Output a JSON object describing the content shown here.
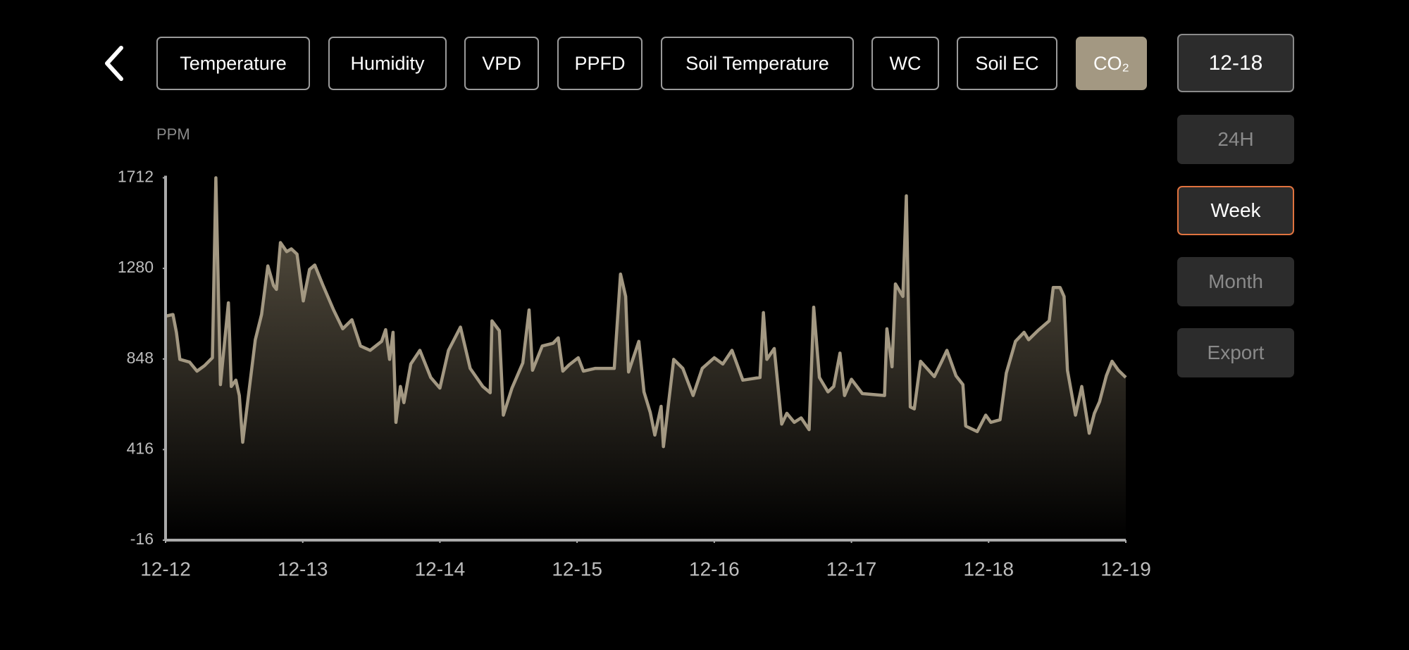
{
  "ui": {
    "tabs": [
      "Temperature",
      "Humidity",
      "VPD",
      "PPFD",
      "Soil Temperature",
      "WC",
      "Soil EC",
      "CO₂"
    ],
    "active_tab": 7,
    "date_button": "12-18",
    "range_buttons": [
      "24H",
      "Week",
      "Month"
    ],
    "active_range": 1,
    "export_button": "Export"
  },
  "chart_data": {
    "type": "area",
    "y_label": "PPM",
    "color": "#a39882",
    "x": [
      0,
      1.3,
      1.9,
      2.5,
      4.2,
      5.5,
      6.8,
      8.2,
      8.8,
      9.6,
      11.0,
      11.5,
      12.3,
      12.9,
      13.5,
      15.7,
      16.8,
      17.9,
      18.9,
      19.4,
      20.1,
      21.2,
      22.0,
      23.0,
      24.1,
      25.2,
      26.1,
      27.5,
      29.4,
      31.0,
      32.6,
      34.1,
      35.8,
      37.8,
      38.5,
      39.2,
      39.8,
      40.3,
      41.1,
      41.7,
      42.9,
      44.5,
      46.4,
      48.0,
      49.5,
      51.6,
      53.3,
      55.5,
      56.8,
      57.1,
      58.4,
      59.1,
      60.6,
      62.5,
      63.6,
      64.2,
      65.9,
      67.8,
      68.7,
      69.5,
      70.6,
      72.2,
      73.1,
      75.2,
      78.5,
      79.6,
      80.5,
      81.0,
      82.8,
      83.7,
      84.8,
      85.6,
      86.7,
      87.1,
      88.9,
      90.5,
      92.3,
      93.9,
      96.0,
      97.5,
      99.1,
      101.0,
      104.0,
      104.6,
      105.2,
      106.5,
      107.8,
      108.7,
      110.0,
      111.2,
      112.6,
      113.4,
      114.4,
      115.9,
      116.9,
      118.0,
      118.8,
      120.0,
      121.9,
      125.8,
      126.2,
      127.1,
      127.7,
      129.0,
      129.6,
      130.3,
      131.0,
      132.1,
      134.5,
      135.8,
      136.7,
      138.3,
      139.5,
      140.0,
      142.0,
      143.5,
      144.4,
      146.0,
      147.1,
      148.7,
      150.2,
      151.0,
      152.6,
      154.6,
      155.3,
      156.5,
      157.2,
      157.8,
      159.2,
      160.3,
      161.6,
      162.5,
      163.4,
      164.6,
      165.6,
      166.7,
      168.0
    ],
    "values": [
      1052,
      1060,
      975,
      846,
      833,
      790,
      816,
      854,
      1712,
      726,
      1116,
      717,
      747,
      674,
      451,
      940,
      1060,
      1292,
      1198,
      1180,
      1403,
      1360,
      1373,
      1348,
      1125,
      1275,
      1296,
      1202,
      1082,
      992,
      1035,
      910,
      889,
      932,
      988,
      846,
      975,
      546,
      717,
      640,
      824,
      889,
      760,
      709,
      889,
      1000,
      803,
      717,
      687,
      1030,
      983,
      580,
      709,
      829,
      1082,
      794,
      910,
      923,
      949,
      790,
      820,
      854,
      790,
      803,
      803,
      1253,
      1146,
      786,
      932,
      691,
      593,
      485,
      622,
      430,
      846,
      803,
      674,
      803,
      854,
      824,
      889,
      747,
      760,
      1069,
      846,
      898,
      537,
      589,
      546,
      567,
      511,
      1095,
      760,
      691,
      717,
      876,
      674,
      751,
      683,
      674,
      992,
      811,
      1206,
      1146,
      1626,
      619,
      610,
      837,
      764,
      837,
      889,
      768,
      726,
      528,
      502,
      580,
      546,
      558,
      781,
      932,
      975,
      940,
      983,
      1030,
      1189,
      1189,
      1146,
      794,
      580,
      717,
      494,
      589,
      644,
      768,
      837,
      794,
      760
    ],
    "xlim": [
      0,
      168
    ],
    "xticks": [
      {
        "value": 0,
        "label": "12-12"
      },
      {
        "value": 24,
        "label": "12-13"
      },
      {
        "value": 48,
        "label": "12-14"
      },
      {
        "value": 72,
        "label": "12-15"
      },
      {
        "value": 96,
        "label": "12-16"
      },
      {
        "value": 120,
        "label": "12-17"
      },
      {
        "value": 144,
        "label": "12-18"
      },
      {
        "value": 168,
        "label": "12-19"
      }
    ],
    "ylim": [
      -16,
      1712
    ],
    "yticks": [
      -16,
      416,
      848,
      1280,
      1712
    ]
  }
}
